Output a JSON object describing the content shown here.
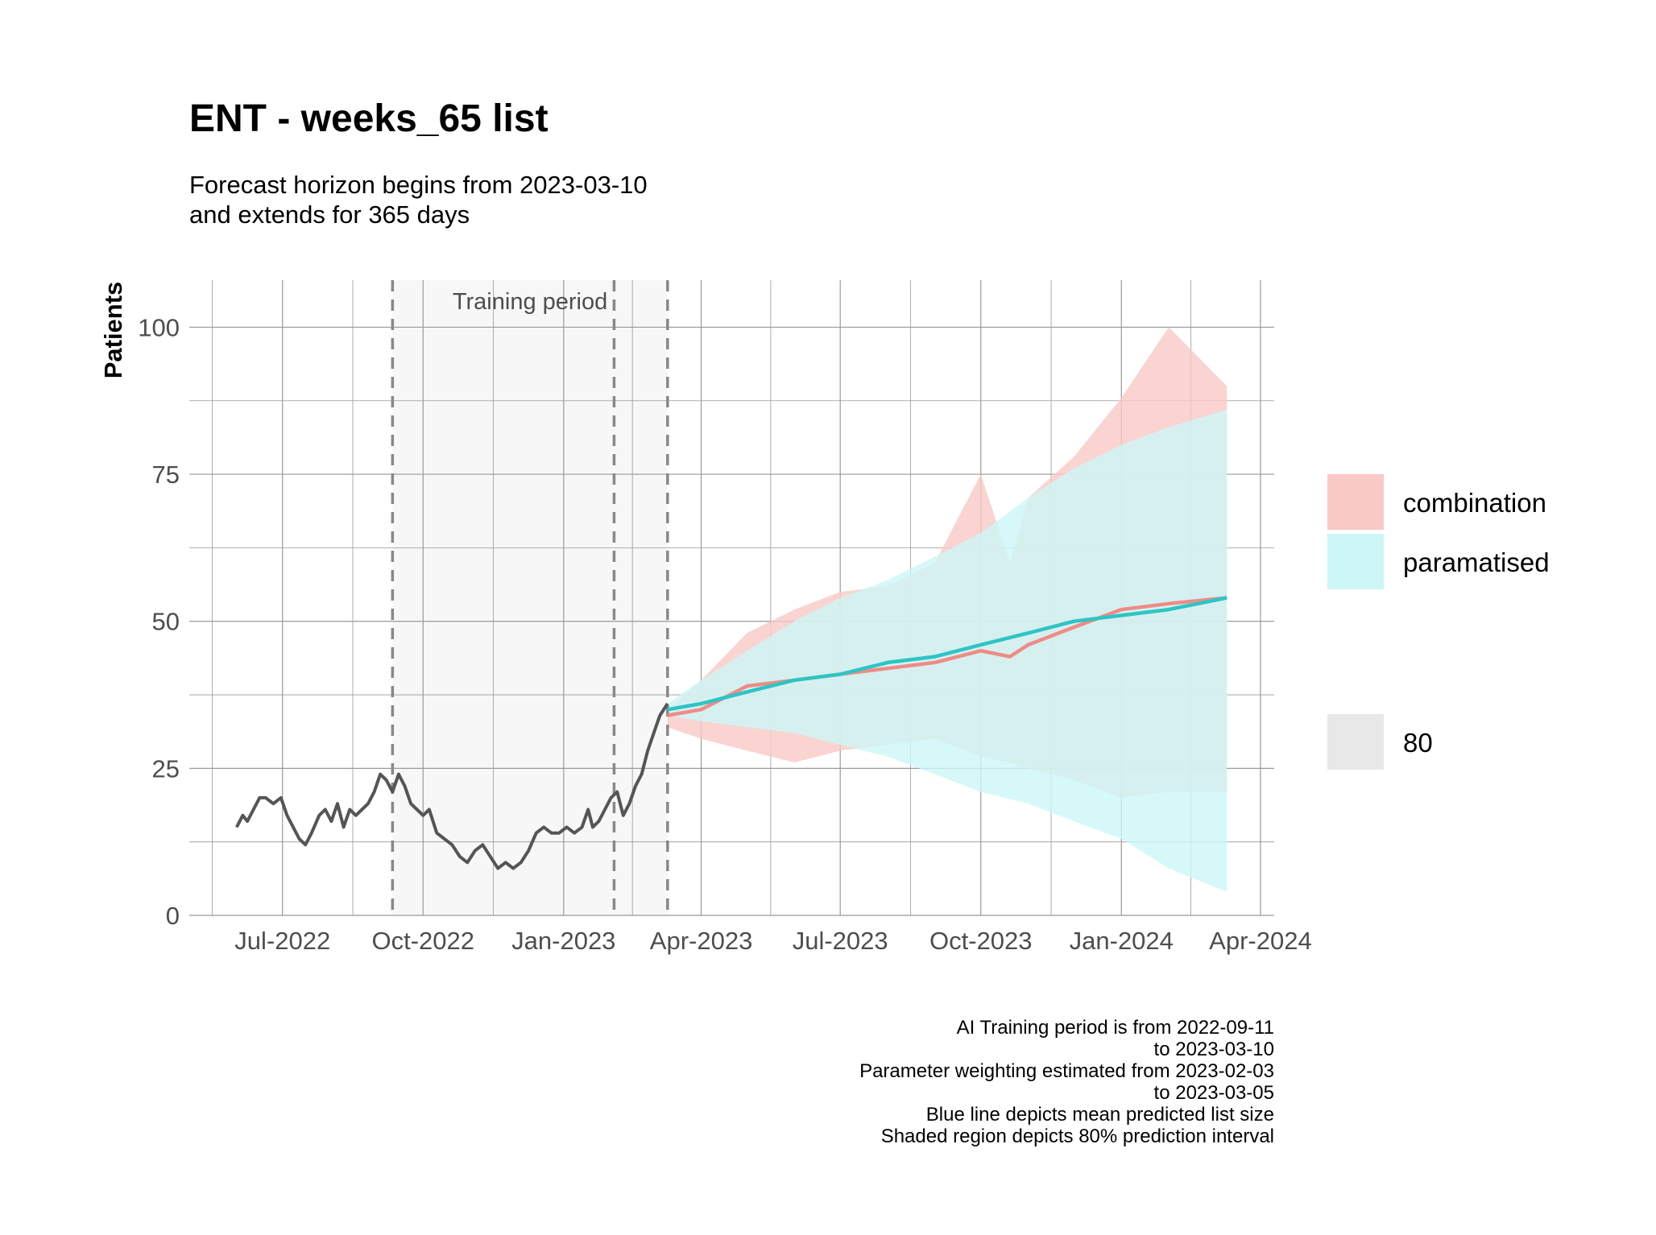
{
  "chart_data": {
    "type": "line",
    "title": "ENT - weeks_65 list",
    "subtitle_lines": [
      "Forecast horizon begins from 2023-03-10",
      "and extends for 365 days"
    ],
    "xlabel": "",
    "ylabel": "Patients",
    "ylim": [
      0,
      108
    ],
    "yticks": [
      0,
      25,
      50,
      75,
      100
    ],
    "xlim": [
      "2022-05-01",
      "2024-04-10"
    ],
    "xticks": [
      {
        "date": "2022-07-01",
        "label": "Jul-2022"
      },
      {
        "date": "2022-10-01",
        "label": "Oct-2022"
      },
      {
        "date": "2023-01-01",
        "label": "Jan-2023"
      },
      {
        "date": "2023-04-01",
        "label": "Apr-2023"
      },
      {
        "date": "2023-07-01",
        "label": "Jul-2023"
      },
      {
        "date": "2023-10-01",
        "label": "Oct-2023"
      },
      {
        "date": "2024-01-01",
        "label": "Jan-2024"
      },
      {
        "date": "2024-04-01",
        "label": "Apr-2024"
      }
    ],
    "grid": true,
    "legend_position": "right",
    "training_period": {
      "label": "Training period",
      "start": "2022-09-11",
      "end": "2023-03-10",
      "parameter_window_start": "2023-02-03"
    },
    "historical": {
      "color": "#555555",
      "x": [
        "2022-06-01",
        "2022-06-05",
        "2022-06-08",
        "2022-06-12",
        "2022-06-16",
        "2022-06-20",
        "2022-06-25",
        "2022-06-30",
        "2022-07-04",
        "2022-07-08",
        "2022-07-12",
        "2022-07-16",
        "2022-07-20",
        "2022-07-25",
        "2022-07-29",
        "2022-08-02",
        "2022-08-06",
        "2022-08-10",
        "2022-08-14",
        "2022-08-18",
        "2022-08-22",
        "2022-08-26",
        "2022-08-30",
        "2022-09-03",
        "2022-09-07",
        "2022-09-11",
        "2022-09-15",
        "2022-09-19",
        "2022-09-23",
        "2022-09-27",
        "2022-10-01",
        "2022-10-05",
        "2022-10-10",
        "2022-10-15",
        "2022-10-20",
        "2022-10-25",
        "2022-10-30",
        "2022-11-04",
        "2022-11-09",
        "2022-11-14",
        "2022-11-19",
        "2022-11-24",
        "2022-11-29",
        "2022-12-04",
        "2022-12-09",
        "2022-12-14",
        "2022-12-19",
        "2022-12-24",
        "2022-12-29",
        "2023-01-03",
        "2023-01-08",
        "2023-01-13",
        "2023-01-17",
        "2023-01-20",
        "2023-01-24",
        "2023-01-28",
        "2023-02-01",
        "2023-02-05",
        "2023-02-09",
        "2023-02-13",
        "2023-02-17",
        "2023-02-21",
        "2023-02-25",
        "2023-03-01",
        "2023-03-05",
        "2023-03-10"
      ],
      "y": [
        15,
        17,
        16,
        18,
        20,
        20,
        19,
        20,
        17,
        15,
        13,
        12,
        14,
        17,
        18,
        16,
        19,
        15,
        18,
        17,
        18,
        19,
        21,
        24,
        23,
        21,
        24,
        22,
        19,
        18,
        17,
        18,
        14,
        13,
        12,
        10,
        9,
        11,
        12,
        10,
        8,
        9,
        8,
        9,
        11,
        14,
        15,
        14,
        14,
        15,
        14,
        15,
        18,
        15,
        16,
        18,
        20,
        21,
        17,
        19,
        22,
        24,
        28,
        31,
        34,
        36
      ]
    },
    "series": [
      {
        "name": "combination",
        "color": "#ee8c86",
        "fill": "#f9c9c5",
        "x": [
          "2023-03-10",
          "2023-04-01",
          "2023-05-01",
          "2023-06-01",
          "2023-07-01",
          "2023-08-01",
          "2023-09-01",
          "2023-10-01",
          "2023-10-20",
          "2023-11-01",
          "2023-12-01",
          "2024-01-01",
          "2024-02-01",
          "2024-03-10"
        ],
        "mean": [
          34,
          35,
          39,
          40,
          41,
          42,
          43,
          45,
          44,
          46,
          49,
          52,
          53,
          54
        ],
        "lower": [
          32,
          30,
          28,
          26,
          28,
          29,
          30,
          27,
          26,
          25,
          23,
          20,
          21,
          21
        ],
        "upper": [
          35,
          40,
          48,
          52,
          55,
          56,
          60,
          75,
          60,
          71,
          78,
          88,
          100,
          90
        ]
      },
      {
        "name": "paramatised",
        "color": "#2ec4c4",
        "fill": "#cdf6f7",
        "x": [
          "2023-03-10",
          "2023-04-01",
          "2023-05-01",
          "2023-06-01",
          "2023-07-01",
          "2023-08-01",
          "2023-09-01",
          "2023-10-01",
          "2023-11-01",
          "2023-12-01",
          "2024-01-01",
          "2024-02-01",
          "2024-03-10"
        ],
        "mean": [
          35,
          36,
          38,
          40,
          41,
          43,
          44,
          46,
          48,
          50,
          51,
          52,
          54
        ],
        "lower": [
          34,
          33,
          32,
          31,
          29,
          27,
          24,
          21,
          19,
          16,
          13,
          8,
          4
        ],
        "upper": [
          36,
          40,
          45,
          50,
          54,
          57,
          61,
          65,
          71,
          76,
          80,
          83,
          86
        ]
      }
    ],
    "legend": [
      {
        "label": "combination",
        "color": "#f9c9c5"
      },
      {
        "label": "paramatised",
        "color": "#cdf6f7"
      },
      {
        "label": "80",
        "color": "#e8e8e8"
      }
    ],
    "caption_lines": [
      "AI Training period is from 2022-09-11",
      "to 2023-03-10",
      "Parameter weighting estimated from 2023-02-03",
      "to 2023-03-05",
      "Blue line depicts mean predicted list size",
      "Shaded region depicts 80% prediction interval"
    ]
  }
}
